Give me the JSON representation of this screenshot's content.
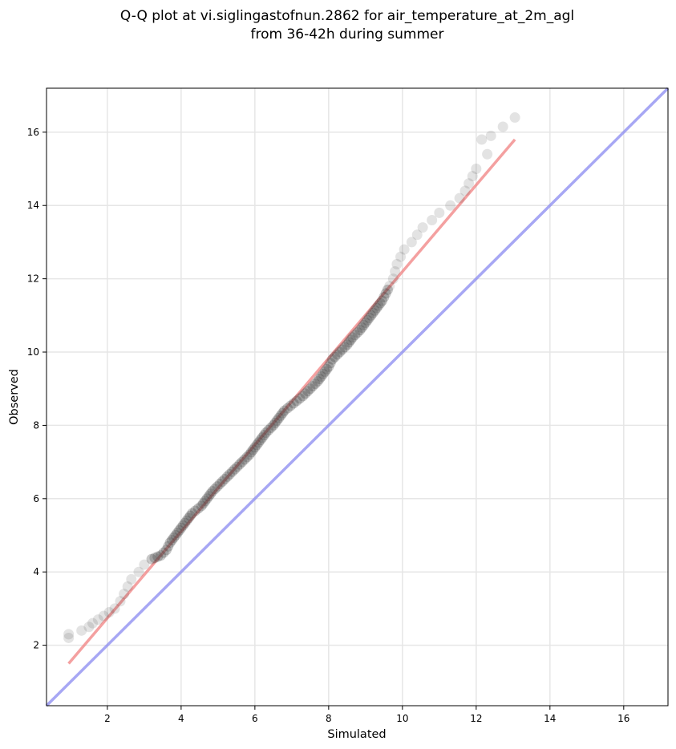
{
  "chart_data": {
    "type": "scatter",
    "title_lines": [
      "Q-Q plot at vi.siglingastofnun.2862 for air_temperature_at_2m_agl",
      "from 36-42h during summer"
    ],
    "xlabel": "Simulated",
    "ylabel": "Observed",
    "xlim": [
      0.35,
      17.2
    ],
    "ylim": [
      0.35,
      17.2
    ],
    "xticks": [
      "2",
      "4",
      "6",
      "8",
      "10",
      "12",
      "14",
      "16"
    ],
    "yticks": [
      "2",
      "4",
      "6",
      "8",
      "10",
      "12",
      "14",
      "16"
    ],
    "grid": true,
    "legend": "none",
    "colors": {
      "points": "#3a3a3a",
      "fit_line": "#f08080",
      "identity_line": "#8a8af0",
      "grid": "#e6e6e6"
    },
    "quantiles": [
      [
        0.95,
        2.2
      ],
      [
        0.95,
        2.3
      ],
      [
        1.3,
        2.4
      ],
      [
        1.5,
        2.5
      ],
      [
        1.6,
        2.6
      ],
      [
        1.75,
        2.7
      ],
      [
        1.9,
        2.8
      ],
      [
        2.05,
        2.9
      ],
      [
        2.2,
        3.0
      ],
      [
        2.35,
        3.2
      ],
      [
        2.45,
        3.4
      ],
      [
        2.55,
        3.6
      ],
      [
        2.65,
        3.8
      ],
      [
        2.85,
        4.0
      ],
      [
        3.0,
        4.2
      ],
      [
        3.2,
        4.35
      ],
      [
        3.45,
        4.45
      ],
      [
        3.6,
        4.6
      ],
      [
        3.7,
        4.8
      ],
      [
        3.85,
        5.0
      ],
      [
        4.0,
        5.2
      ],
      [
        4.15,
        5.4
      ],
      [
        4.3,
        5.6
      ],
      [
        4.55,
        5.8
      ],
      [
        4.7,
        6.0
      ],
      [
        4.85,
        6.2
      ],
      [
        5.05,
        6.4
      ],
      [
        5.25,
        6.6
      ],
      [
        5.45,
        6.8
      ],
      [
        5.65,
        7.0
      ],
      [
        5.85,
        7.2
      ],
      [
        6.0,
        7.4
      ],
      [
        6.15,
        7.6
      ],
      [
        6.3,
        7.8
      ],
      [
        6.5,
        8.0
      ],
      [
        6.65,
        8.2
      ],
      [
        6.8,
        8.4
      ],
      [
        7.05,
        8.6
      ],
      [
        7.3,
        8.8
      ],
      [
        7.5,
        9.0
      ],
      [
        7.7,
        9.2
      ],
      [
        7.85,
        9.4
      ],
      [
        8.0,
        9.6
      ],
      [
        8.1,
        9.8
      ],
      [
        8.3,
        10.0
      ],
      [
        8.5,
        10.2
      ],
      [
        8.65,
        10.4
      ],
      [
        8.85,
        10.6
      ],
      [
        9.0,
        10.8
      ],
      [
        9.15,
        11.0
      ],
      [
        9.3,
        11.2
      ],
      [
        9.45,
        11.4
      ],
      [
        9.55,
        11.6
      ],
      [
        9.65,
        11.8
      ],
      [
        9.75,
        12.0
      ],
      [
        9.8,
        12.2
      ],
      [
        9.85,
        12.4
      ],
      [
        9.95,
        12.6
      ],
      [
        10.05,
        12.8
      ],
      [
        10.25,
        13.0
      ],
      [
        10.4,
        13.2
      ],
      [
        10.55,
        13.4
      ],
      [
        10.8,
        13.6
      ],
      [
        11.0,
        13.8
      ],
      [
        11.3,
        14.0
      ],
      [
        11.55,
        14.2
      ],
      [
        11.7,
        14.4
      ],
      [
        11.8,
        14.6
      ],
      [
        11.9,
        14.8
      ],
      [
        12.0,
        15.0
      ],
      [
        12.3,
        15.4
      ],
      [
        12.15,
        15.8
      ],
      [
        12.4,
        15.9
      ],
      [
        13.05,
        16.4
      ]
    ],
    "fit_line": {
      "x": [
        0.95,
        13.05
      ],
      "y": [
        1.5,
        15.8
      ]
    },
    "identity_line": {
      "x": [
        0.35,
        17.2
      ],
      "y": [
        0.35,
        17.2
      ]
    }
  }
}
